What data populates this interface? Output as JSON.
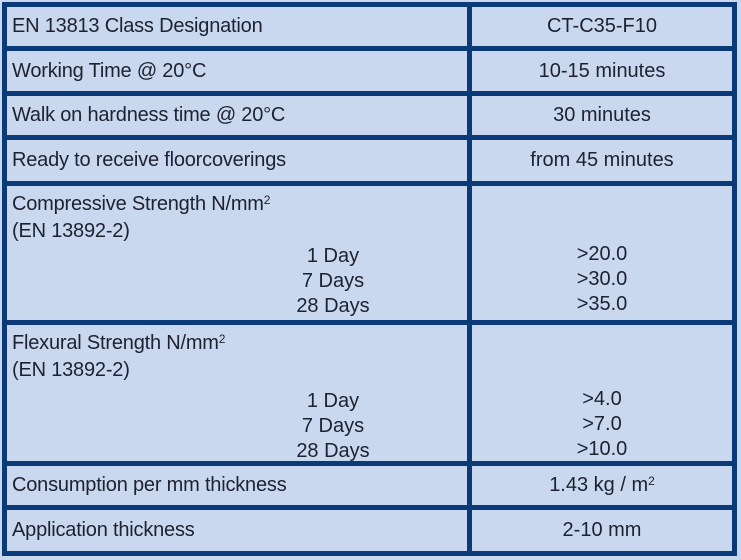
{
  "colors": {
    "table_border": "#0b3a78",
    "cell_background": "#c9d8ef",
    "page_background": "#c9d8ef",
    "text": "#1e2130"
  },
  "table": {
    "simple_rows": [
      {
        "label": "EN 13813 Class Designation",
        "value": "CT-C35-F10"
      },
      {
        "label": "Working Time @ 20°C",
        "value": "10-15 minutes"
      },
      {
        "label": "Walk on hardness time @ 20°C",
        "value": "30 minutes"
      },
      {
        "label": "Ready to receive floorcoverings",
        "value": "from 45 minutes"
      }
    ],
    "strength_sections": [
      {
        "title": "Compressive Strength N/mm",
        "title_sup": "2",
        "standard": "(EN 13892-2)",
        "rows": [
          {
            "age": "1 Day",
            "value": ">20.0"
          },
          {
            "age": "7 Days",
            "value": ">30.0"
          },
          {
            "age": "28 Days",
            "value": ">35.0"
          }
        ]
      },
      {
        "title": "Flexural Strength N/mm",
        "title_sup": "2",
        "standard": "(EN 13892-2)",
        "rows": [
          {
            "age": "1 Day",
            "value": ">4.0"
          },
          {
            "age": "7 Days",
            "value": ">7.0"
          },
          {
            "age": "28 Days",
            "value": ">10.0"
          }
        ]
      }
    ],
    "footer_rows": [
      {
        "label": "Consumption per mm thickness",
        "value": "1.43 kg / m",
        "value_sup": "2"
      },
      {
        "label": "Application thickness",
        "value": "2-10 mm"
      }
    ]
  }
}
